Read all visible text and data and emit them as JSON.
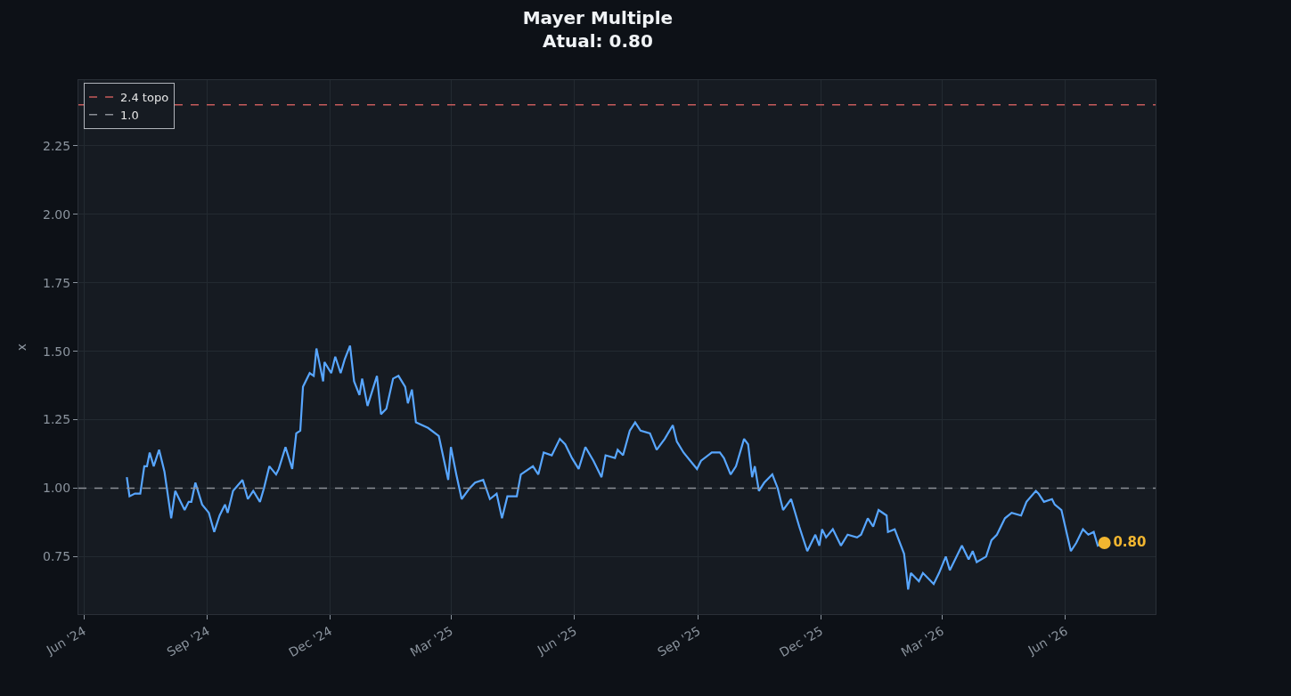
{
  "chart_data": {
    "type": "line",
    "title": "Mayer Multiple",
    "subtitle": "Atual: 0.80",
    "ylabel": "x",
    "xlim": [
      "2024-05-28",
      "2026-08-07"
    ],
    "ylim": [
      0.54,
      2.49
    ],
    "xticks": [
      {
        "value": "2024-06-01",
        "label": "Jun '24"
      },
      {
        "value": "2024-09-01",
        "label": "Sep '24"
      },
      {
        "value": "2024-12-01",
        "label": "Dec '24"
      },
      {
        "value": "2025-03-01",
        "label": "Mar '25"
      },
      {
        "value": "2025-06-01",
        "label": "Jun '25"
      },
      {
        "value": "2025-09-01",
        "label": "Sep '25"
      },
      {
        "value": "2025-12-01",
        "label": "Dec '25"
      },
      {
        "value": "2026-03-01",
        "label": "Mar '26"
      },
      {
        "value": "2026-06-01",
        "label": "Jun '26"
      }
    ],
    "yticks": [
      {
        "value": 0.75,
        "label": "0.75"
      },
      {
        "value": 1.0,
        "label": "1.00"
      },
      {
        "value": 1.25,
        "label": "1.25"
      },
      {
        "value": 1.5,
        "label": "1.50"
      },
      {
        "value": 1.75,
        "label": "1.75"
      },
      {
        "value": 2.0,
        "label": "2.00"
      },
      {
        "value": 2.25,
        "label": "2.25"
      }
    ],
    "grid": true,
    "legend": "top left",
    "marker": "none",
    "line_style": "solid",
    "ref_lines": [
      {
        "axis": "y",
        "value": 2.4,
        "label": "2.4 topo",
        "color": "#c65b5b",
        "line_style": "dashed"
      },
      {
        "axis": "y",
        "value": 1.0,
        "label": "1.0",
        "color": "#8b8f96",
        "line_style": "dashed"
      }
    ],
    "series": [
      {
        "color": "#58a6ff",
        "x": [
          "2024-07-03",
          "2024-07-05",
          "2024-07-09",
          "2024-07-13",
          "2024-07-16",
          "2024-07-18",
          "2024-07-20",
          "2024-07-23",
          "2024-07-27",
          "2024-07-31",
          "2024-08-05",
          "2024-08-08",
          "2024-08-11",
          "2024-08-15",
          "2024-08-18",
          "2024-08-20",
          "2024-08-23",
          "2024-08-28",
          "2024-09-02",
          "2024-09-06",
          "2024-09-10",
          "2024-09-14",
          "2024-09-16",
          "2024-09-20",
          "2024-09-27",
          "2024-10-01",
          "2024-10-05",
          "2024-10-10",
          "2024-10-13",
          "2024-10-17",
          "2024-10-22",
          "2024-10-24",
          "2024-10-29",
          "2024-11-03",
          "2024-11-06",
          "2024-11-09",
          "2024-11-11",
          "2024-11-16",
          "2024-11-19",
          "2024-11-21",
          "2024-11-26",
          "2024-11-27",
          "2024-12-02",
          "2024-12-05",
          "2024-12-09",
          "2024-12-12",
          "2024-12-16",
          "2024-12-19",
          "2024-12-23",
          "2024-12-25",
          "2024-12-29",
          "2025-01-05",
          "2025-01-08",
          "2025-01-12",
          "2025-01-17",
          "2025-01-21",
          "2025-01-26",
          "2025-01-28",
          "2025-01-31",
          "2025-02-03",
          "2025-02-12",
          "2025-02-20",
          "2025-02-27",
          "2025-03-01",
          "2025-03-05",
          "2025-03-09",
          "2025-03-15",
          "2025-03-19",
          "2025-03-25",
          "2025-03-30",
          "2025-04-04",
          "2025-04-08",
          "2025-04-12",
          "2025-04-19",
          "2025-04-22",
          "2025-05-01",
          "2025-05-05",
          "2025-05-09",
          "2025-05-15",
          "2025-05-21",
          "2025-05-25",
          "2025-05-30",
          "2025-06-04",
          "2025-06-09",
          "2025-06-15",
          "2025-06-21",
          "2025-06-24",
          "2025-07-01",
          "2025-07-03",
          "2025-07-07",
          "2025-07-12",
          "2025-07-16",
          "2025-07-20",
          "2025-07-27",
          "2025-08-01",
          "2025-08-07",
          "2025-08-13",
          "2025-08-16",
          "2025-08-21",
          "2025-08-26",
          "2025-08-31",
          "2025-09-03",
          "2025-09-11",
          "2025-09-17",
          "2025-09-20",
          "2025-09-25",
          "2025-09-29",
          "2025-10-05",
          "2025-10-08",
          "2025-10-11",
          "2025-10-13",
          "2025-10-16",
          "2025-10-20",
          "2025-10-26",
          "2025-10-30",
          "2025-11-03",
          "2025-11-09",
          "2025-11-15",
          "2025-11-21",
          "2025-11-27",
          "2025-11-30",
          "2025-12-02",
          "2025-12-05",
          "2025-12-10",
          "2025-12-16",
          "2025-12-21",
          "2025-12-28",
          "2025-12-31",
          "2026-01-05",
          "2026-01-09",
          "2026-01-13",
          "2026-01-19",
          "2026-01-20",
          "2026-01-25",
          "2026-02-01",
          "2026-02-04",
          "2026-02-06",
          "2026-02-12",
          "2026-02-15",
          "2026-02-19",
          "2026-02-23",
          "2026-02-27",
          "2026-03-04",
          "2026-03-07",
          "2026-03-16",
          "2026-03-21",
          "2026-03-24",
          "2026-03-27",
          "2026-04-03",
          "2026-04-07",
          "2026-04-11",
          "2026-04-17",
          "2026-04-22",
          "2026-04-29",
          "2026-05-03",
          "2026-05-10",
          "2026-05-12",
          "2026-05-16",
          "2026-05-22",
          "2026-05-24",
          "2026-05-29",
          "2026-06-05",
          "2026-06-09",
          "2026-06-14",
          "2026-06-18",
          "2026-06-22",
          "2026-06-25",
          "2026-06-30"
        ],
        "values": [
          1.04,
          0.97,
          0.98,
          0.98,
          1.08,
          1.08,
          1.13,
          1.08,
          1.14,
          1.06,
          0.89,
          0.99,
          0.96,
          0.92,
          0.95,
          0.95,
          1.02,
          0.94,
          0.91,
          0.84,
          0.9,
          0.94,
          0.91,
          0.99,
          1.03,
          0.96,
          0.99,
          0.95,
          1.0,
          1.08,
          1.05,
          1.07,
          1.15,
          1.07,
          1.2,
          1.21,
          1.37,
          1.42,
          1.41,
          1.51,
          1.39,
          1.46,
          1.42,
          1.48,
          1.42,
          1.47,
          1.52,
          1.39,
          1.34,
          1.4,
          1.3,
          1.41,
          1.27,
          1.29,
          1.4,
          1.41,
          1.37,
          1.31,
          1.36,
          1.24,
          1.22,
          1.19,
          1.03,
          1.15,
          1.05,
          0.96,
          1.0,
          1.02,
          1.03,
          0.96,
          0.98,
          0.89,
          0.97,
          0.97,
          1.05,
          1.08,
          1.05,
          1.13,
          1.12,
          1.18,
          1.16,
          1.11,
          1.07,
          1.15,
          1.1,
          1.04,
          1.12,
          1.11,
          1.14,
          1.12,
          1.21,
          1.24,
          1.21,
          1.2,
          1.14,
          1.18,
          1.23,
          1.17,
          1.13,
          1.1,
          1.07,
          1.1,
          1.13,
          1.13,
          1.11,
          1.05,
          1.08,
          1.18,
          1.16,
          1.04,
          1.08,
          0.99,
          1.02,
          1.05,
          1.0,
          0.92,
          0.96,
          0.86,
          0.77,
          0.83,
          0.79,
          0.85,
          0.82,
          0.85,
          0.79,
          0.83,
          0.82,
          0.83,
          0.89,
          0.86,
          0.92,
          0.9,
          0.84,
          0.85,
          0.76,
          0.63,
          0.69,
          0.66,
          0.69,
          0.67,
          0.65,
          0.69,
          0.75,
          0.7,
          0.79,
          0.74,
          0.77,
          0.73,
          0.75,
          0.81,
          0.83,
          0.89,
          0.91,
          0.9,
          0.95,
          0.99,
          0.98,
          0.95,
          0.96,
          0.94,
          0.92,
          0.77,
          0.8,
          0.85,
          0.83,
          0.84,
          0.79,
          0.8
        ]
      },
      {
        "type": "scatter",
        "color": "#f2b630",
        "marker": "circle",
        "x": [
          "2026-06-30"
        ],
        "values": [
          0.8
        ],
        "value_labels": [
          "0.80"
        ]
      }
    ]
  }
}
